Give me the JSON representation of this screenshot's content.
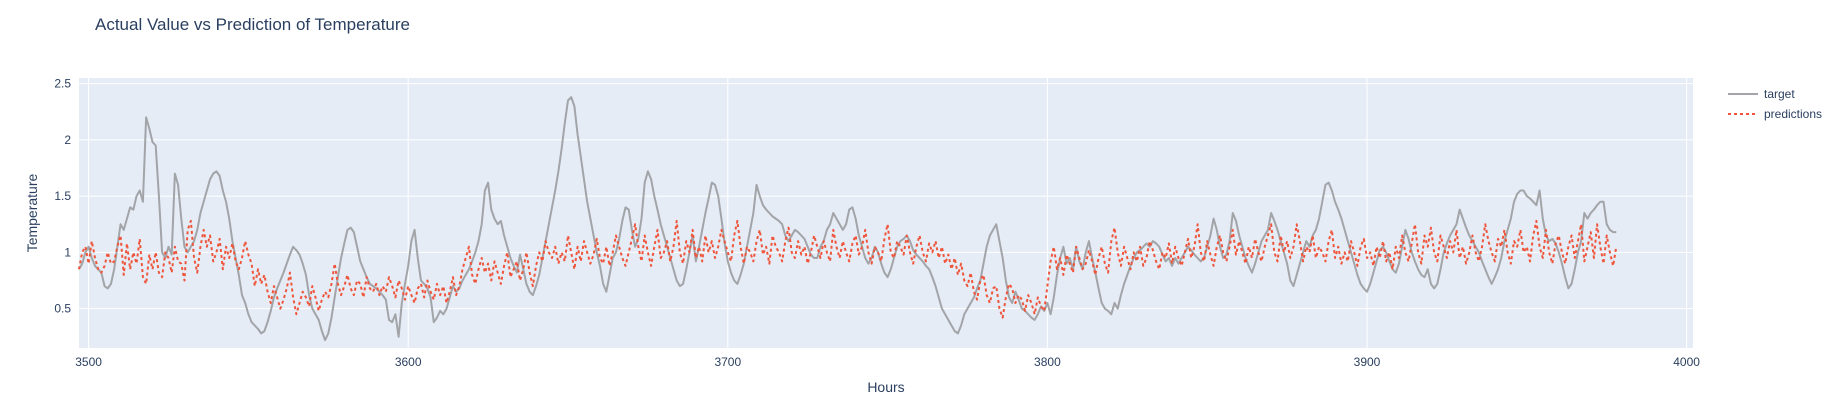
{
  "chart_data": {
    "type": "line",
    "title": "Actual Value vs Prediction of Temperature",
    "xlabel": "Hours",
    "ylabel": "Temperature",
    "xlim": [
      3497,
      4002
    ],
    "ylim": [
      0.15,
      2.55
    ],
    "x_ticks": [
      "3500",
      "3600",
      "3700",
      "3800",
      "3900",
      "4000"
    ],
    "y_ticks": [
      "0.5",
      "1",
      "1.5",
      "2",
      "2.5"
    ],
    "grid": true,
    "legend_position": "top-right",
    "plot_background": "#e5ecf6",
    "series": [
      {
        "name": "target",
        "color": "#a2a4a8",
        "dash": "solid",
        "x_start": 3497,
        "x_step": 1,
        "values": [
          0.85,
          0.9,
          1.0,
          1.05,
          0.95,
          0.88,
          0.85,
          0.82,
          0.7,
          0.68,
          0.72,
          0.85,
          1.05,
          1.25,
          1.2,
          1.3,
          1.4,
          1.38,
          1.5,
          1.55,
          1.45,
          2.2,
          2.1,
          1.98,
          1.95,
          1.5,
          1.0,
          0.95,
          1.05,
          0.98,
          1.7,
          1.6,
          1.3,
          1.05,
          1.0,
          1.05,
          1.1,
          1.2,
          1.35,
          1.45,
          1.55,
          1.65,
          1.7,
          1.72,
          1.68,
          1.55,
          1.45,
          1.3,
          1.1,
          0.95,
          0.8,
          0.62,
          0.55,
          0.45,
          0.38,
          0.35,
          0.32,
          0.28,
          0.3,
          0.38,
          0.48,
          0.6,
          0.68,
          0.75,
          0.82,
          0.9,
          0.98,
          1.05,
          1.02,
          0.98,
          0.9,
          0.8,
          0.62,
          0.5,
          0.45,
          0.4,
          0.3,
          0.22,
          0.28,
          0.42,
          0.6,
          0.78,
          0.95,
          1.08,
          1.2,
          1.22,
          1.18,
          1.05,
          0.92,
          0.85,
          0.78,
          0.72,
          0.7,
          0.68,
          0.65,
          0.62,
          0.58,
          0.4,
          0.38,
          0.45,
          0.25,
          0.55,
          0.72,
          0.88,
          1.1,
          1.2,
          0.95,
          0.75,
          0.72,
          0.68,
          0.6,
          0.38,
          0.42,
          0.48,
          0.45,
          0.5,
          0.6,
          0.7,
          0.65,
          0.68,
          0.75,
          0.8,
          0.85,
          0.92,
          1.0,
          1.1,
          1.25,
          1.55,
          1.62,
          1.38,
          1.3,
          1.25,
          1.28,
          1.15,
          1.05,
          0.95,
          0.88,
          0.82,
          0.98,
          0.85,
          0.72,
          0.65,
          0.62,
          0.7,
          0.8,
          0.95,
          1.1,
          1.25,
          1.4,
          1.55,
          1.72,
          1.92,
          2.15,
          2.35,
          2.38,
          2.3,
          2.05,
          1.85,
          1.65,
          1.45,
          1.3,
          1.15,
          1.0,
          0.88,
          0.72,
          0.65,
          0.8,
          0.95,
          1.0,
          1.12,
          1.28,
          1.4,
          1.38,
          1.2,
          1.05,
          1.12,
          1.3,
          1.62,
          1.72,
          1.65,
          1.5,
          1.38,
          1.25,
          1.15,
          1.05,
          0.95,
          0.85,
          0.75,
          0.7,
          0.72,
          0.85,
          1.0,
          1.15,
          0.92,
          1.05,
          1.2,
          1.35,
          1.48,
          1.62,
          1.6,
          1.5,
          1.3,
          1.08,
          0.92,
          0.82,
          0.75,
          0.72,
          0.8,
          0.9,
          1.05,
          1.2,
          1.35,
          1.6,
          1.5,
          1.42,
          1.38,
          1.35,
          1.32,
          1.3,
          1.28,
          1.25,
          1.15,
          1.1,
          1.15,
          1.2,
          1.18,
          1.15,
          1.12,
          1.05,
          0.98,
          0.95,
          0.95,
          1.05,
          1.1,
          1.2,
          1.25,
          1.35,
          1.3,
          1.25,
          1.2,
          1.25,
          1.38,
          1.4,
          1.3,
          1.15,
          1.05,
          0.95,
          0.9,
          0.95,
          1.05,
          1.0,
          0.9,
          0.82,
          0.78,
          0.85,
          0.95,
          1.05,
          1.1,
          1.12,
          1.15,
          1.1,
          1.02,
          0.98,
          0.95,
          0.92,
          0.88,
          0.85,
          0.78,
          0.7,
          0.6,
          0.5,
          0.45,
          0.4,
          0.35,
          0.3,
          0.28,
          0.35,
          0.45,
          0.5,
          0.55,
          0.6,
          0.68,
          0.75,
          0.9,
          1.05,
          1.15,
          1.2,
          1.25,
          1.1,
          0.95,
          0.75,
          0.6,
          0.55,
          0.65,
          0.58,
          0.5,
          0.48,
          0.45,
          0.42,
          0.4,
          0.45,
          0.52,
          0.48,
          0.55,
          0.45,
          0.6,
          0.8,
          0.95,
          1.05,
          0.9,
          0.95,
          0.85,
          1.05,
          0.92,
          0.85,
          1.0,
          1.1,
          0.95,
          0.82,
          0.68,
          0.55,
          0.5,
          0.48,
          0.45,
          0.55,
          0.5,
          0.62,
          0.72,
          0.8,
          0.88,
          0.95,
          1.0,
          1.02,
          1.05,
          1.08,
          1.05,
          1.1,
          1.08,
          1.05,
          0.98,
          0.92,
          0.95,
          0.88,
          0.95,
          0.9,
          0.95,
          1.0,
          1.05,
          1.02,
          0.98,
          0.95,
          0.92,
          0.95,
          1.05,
          1.15,
          1.3,
          1.2,
          1.05,
          0.95,
          0.98,
          1.1,
          1.35,
          1.28,
          1.15,
          1.05,
          0.95,
          0.88,
          0.82,
          0.9,
          1.0,
          1.1,
          1.15,
          1.2,
          1.35,
          1.28,
          1.2,
          1.1,
          1.0,
          0.9,
          0.75,
          0.7,
          0.8,
          0.9,
          1.0,
          1.1,
          1.05,
          1.15,
          1.2,
          1.3,
          1.45,
          1.6,
          1.62,
          1.55,
          1.45,
          1.38,
          1.3,
          1.2,
          1.1,
          1.0,
          0.9,
          0.8,
          0.72,
          0.68,
          0.65,
          0.72,
          0.82,
          0.92,
          1.02,
          1.05,
          1.0,
          0.92,
          0.85,
          0.82,
          0.9,
          1.05,
          1.2,
          1.12,
          1.0,
          0.92,
          0.85,
          0.8,
          0.78,
          0.85,
          0.72,
          0.68,
          0.72,
          0.85,
          1.0,
          1.08,
          1.15,
          1.2,
          1.25,
          1.38,
          1.3,
          1.22,
          1.15,
          1.1,
          1.05,
          1.0,
          0.92,
          0.85,
          0.78,
          0.72,
          0.78,
          0.85,
          0.95,
          1.1,
          1.2,
          1.3,
          1.45,
          1.52,
          1.55,
          1.55,
          1.5,
          1.48,
          1.45,
          1.42,
          1.55,
          1.3,
          1.15,
          1.1,
          1.12,
          1.08,
          1.0,
          0.9,
          0.78,
          0.68,
          0.72,
          0.85,
          1.0,
          1.1,
          1.35,
          1.3,
          1.35,
          1.38,
          1.42,
          1.45,
          1.45,
          1.25,
          1.2,
          1.18,
          1.18
        ]
      },
      {
        "name": "predictions",
        "color": "#ef553b",
        "dash": "dot",
        "x_start": 3497,
        "x_step": 1,
        "values": [
          0.85,
          1.0,
          1.05,
          0.9,
          1.1,
          0.95,
          0.85,
          0.82,
          0.88,
          1.0,
          0.9,
          0.92,
          1.05,
          1.15,
          0.8,
          1.08,
          0.85,
          1.0,
          0.9,
          1.12,
          0.78,
          0.72,
          0.98,
          0.85,
          1.0,
          0.82,
          0.78,
          1.0,
          0.95,
          0.82,
          1.05,
          0.92,
          0.9,
          0.75,
          1.2,
          1.28,
          0.95,
          0.82,
          1.05,
          1.2,
          1.05,
          1.15,
          0.92,
          1.0,
          1.12,
          0.85,
          1.05,
          0.95,
          1.08,
          0.92,
          0.85,
          0.95,
          1.1,
          0.98,
          0.9,
          0.7,
          0.85,
          0.72,
          0.8,
          0.65,
          0.55,
          0.7,
          0.6,
          0.5,
          0.58,
          0.68,
          0.82,
          0.6,
          0.45,
          0.55,
          0.65,
          0.6,
          0.52,
          0.7,
          0.6,
          0.48,
          0.58,
          0.65,
          0.6,
          0.72,
          0.9,
          0.72,
          0.62,
          0.7,
          0.8,
          0.68,
          0.62,
          0.75,
          0.72,
          0.6,
          0.78,
          0.68,
          0.65,
          0.72,
          0.62,
          0.7,
          0.65,
          0.78,
          0.7,
          0.6,
          0.75,
          0.68,
          0.58,
          0.7,
          0.62,
          0.55,
          0.68,
          0.72,
          0.6,
          0.75,
          0.65,
          0.58,
          0.72,
          0.62,
          0.7,
          0.55,
          0.65,
          0.78,
          0.62,
          0.7,
          0.85,
          0.95,
          1.05,
          0.8,
          0.72,
          0.85,
          0.95,
          0.82,
          0.9,
          0.75,
          0.92,
          0.82,
          0.72,
          0.88,
          1.0,
          0.78,
          0.85,
          0.92,
          0.75,
          0.85,
          1.0,
          0.82,
          0.7,
          0.88,
          1.0,
          0.92,
          1.1,
          1.0,
          0.95,
          1.05,
          0.9,
          1.0,
          0.92,
          1.15,
          1.0,
          0.85,
          1.05,
          0.92,
          1.1,
          1.0,
          0.9,
          0.98,
          1.12,
          0.95,
          0.9,
          1.05,
          0.88,
          1.0,
          1.15,
          1.05,
          0.95,
          0.88,
          1.0,
          1.12,
          1.25,
          1.05,
          0.92,
          1.15,
          1.0,
          0.88,
          1.05,
          1.2,
          0.95,
          1.0,
          1.1,
          0.92,
          1.05,
          1.28,
          1.0,
          0.9,
          1.1,
          1.0,
          1.2,
          0.95,
          1.05,
          0.92,
          1.15,
          1.0,
          1.1,
          0.95,
          1.05,
          1.2,
          1.1,
          1.0,
          0.92,
          1.15,
          1.28,
          1.05,
          0.9,
          1.05,
          1.0,
          0.92,
          1.1,
          1.2,
          0.98,
          1.05,
          0.9,
          1.15,
          1.05,
          1.0,
          0.92,
          1.1,
          1.22,
          1.0,
          0.95,
          1.1,
          0.98,
          1.05,
          0.9,
          1.0,
          1.15,
          1.05,
          0.95,
          1.1,
          1.0,
          0.92,
          1.2,
          1.05,
          0.95,
          1.1,
          1.0,
          0.92,
          1.08,
          1.15,
          0.98,
          1.05,
          1.2,
          1.0,
          0.9,
          1.05,
          1.0,
          0.92,
          1.12,
          1.25,
          1.0,
          0.95,
          1.1,
          1.05,
          0.98,
          1.15,
          1.0,
          0.9,
          1.05,
          1.15,
          1.0,
          0.92,
          1.08,
          1.0,
          1.1,
          0.95,
          1.05,
          0.9,
          0.98,
          0.85,
          0.95,
          0.8,
          0.9,
          0.75,
          0.7,
          0.82,
          0.65,
          0.58,
          0.75,
          0.8,
          0.62,
          0.55,
          0.68,
          0.7,
          0.5,
          0.42,
          0.6,
          0.72,
          0.68,
          0.55,
          0.62,
          0.58,
          0.48,
          0.62,
          0.55,
          0.45,
          0.6,
          0.52,
          0.48,
          0.7,
          0.92,
          1.05,
          0.85,
          0.95,
          0.8,
          0.98,
          0.9,
          0.82,
          1.05,
          0.95,
          0.85,
          0.9,
          1.02,
          0.92,
          0.8,
          0.95,
          1.05,
          0.9,
          0.82,
          1.1,
          1.22,
          1.0,
          0.88,
          1.05,
          0.95,
          0.85,
          1.0,
          0.92,
          1.05,
          0.88,
          0.95,
          1.1,
          1.02,
          0.92,
          0.85,
          1.0,
          0.95,
          1.08,
          0.9,
          1.05,
          0.95,
          0.88,
          1.0,
          1.12,
          0.95,
          1.05,
          1.25,
          1.0,
          0.92,
          1.1,
          0.98,
          0.88,
          1.05,
          1.15,
          1.0,
          0.92,
          1.05,
          1.2,
          0.98,
          1.1,
          1.0,
          0.9,
          1.05,
          0.95,
          1.12,
          1.0,
          0.92,
          1.05,
          1.15,
          1.25,
          1.0,
          0.92,
          1.15,
          1.0,
          1.1,
          0.95,
          1.05,
          1.25,
          1.1,
          0.92,
          1.05,
          1.0,
          1.15,
          0.95,
          1.05,
          1.0,
          0.92,
          1.1,
          1.2,
          0.95,
          1.05,
          0.9,
          1.0,
          0.92,
          1.1,
          1.0,
          0.88,
          1.05,
          1.12,
          0.95,
          1.0,
          0.88,
          1.05,
          0.95,
          1.1,
          0.92,
          1.0,
          0.85,
          1.05,
          0.95,
          1.15,
          1.0,
          0.92,
          1.08,
          1.25,
          1.0,
          0.9,
          1.15,
          1.05,
          1.22,
          1.0,
          0.92,
          1.15,
          1.05,
          0.95,
          1.1,
          1.0,
          1.2,
          0.95,
          1.05,
          0.9,
          1.0,
          1.15,
          1.0,
          0.92,
          1.05,
          1.25,
          1.1,
          1.0,
          0.92,
          1.12,
          1.05,
          1.2,
          1.0,
          0.9,
          1.1,
          1.05,
          1.2,
          1.0,
          1.05,
          0.92,
          1.15,
          1.28,
          1.05,
          0.95,
          1.2,
          1.0,
          0.9,
          1.08,
          1.15,
          1.0,
          0.9,
          1.05,
          1.15,
          0.95,
          1.1,
          1.25,
          0.92,
          1.05,
          1.18,
          0.95,
          1.25,
          1.05,
          0.9,
          1.15,
          1.0,
          0.88,
          1.05
        ]
      }
    ]
  }
}
